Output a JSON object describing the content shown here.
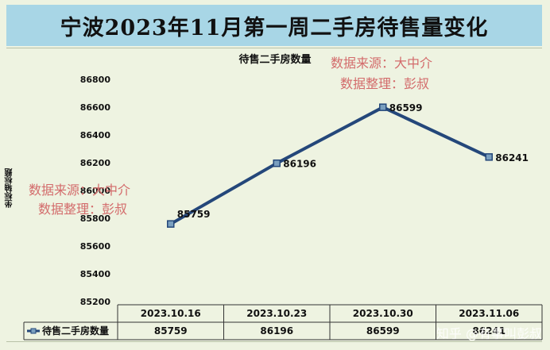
{
  "page": {
    "banner_title": "宁波2023年11月第一周二手房待售量变化",
    "watermark_source": "数据来源：大中介",
    "watermark_editor": "数据整理：彭叔",
    "zhihu_mark": "知乎 @有事叫彭叔"
  },
  "chart_data": {
    "type": "line",
    "title": "待售二手房数量",
    "xlabel": "",
    "ylabel": "坐标轴标题",
    "categories": [
      "2023.10.16",
      "2023.10.23",
      "2023.10.30",
      "2023.11.06"
    ],
    "series": [
      {
        "name": "待售二手房数量",
        "values": [
          85759,
          86196,
          86599,
          86241
        ]
      }
    ],
    "ylim": [
      85200,
      86800
    ],
    "yticks": [
      85200,
      85400,
      85600,
      85800,
      86000,
      86200,
      86400,
      86600,
      86800
    ],
    "data_labels": [
      "85759",
      "86196",
      "86599",
      "86241"
    ],
    "table_values": [
      "85759",
      "86196",
      "86599",
      "86241"
    ],
    "grid": false,
    "data_table": true,
    "line_color": "#24477a",
    "marker_color": "#7a9fbf"
  }
}
